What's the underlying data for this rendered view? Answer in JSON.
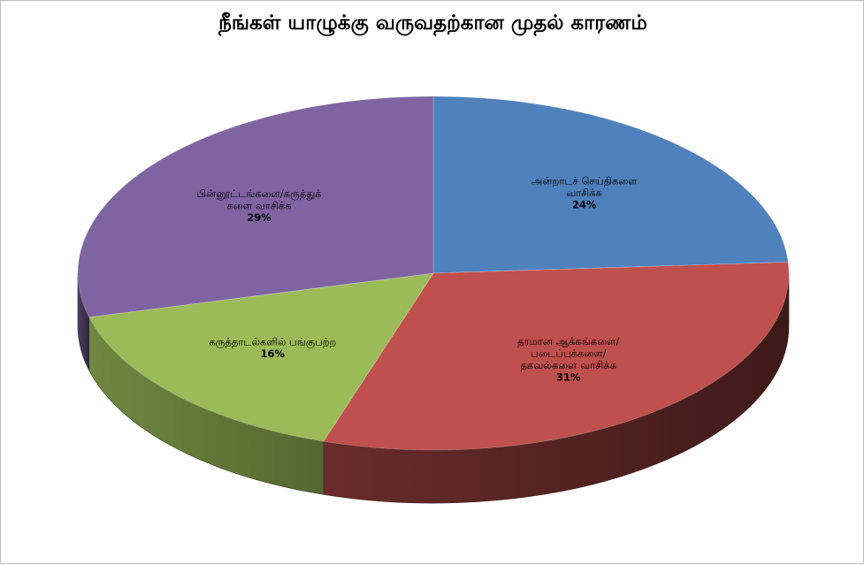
{
  "chart_data": {
    "type": "pie",
    "style": "3d",
    "title": "நீங்கள் யாழுக்கு வருவதற்கான முதல் காரணம்",
    "slices": [
      {
        "label_lines": [
          "அன்றாடச் செய்திகளை",
          "வாசிக்க"
        ],
        "percent_label": "24%",
        "value": 24,
        "color": "#4f81bd"
      },
      {
        "label_lines": [
          "தரமான ஆக்கங்களை/",
          "படைப்புக்களை/",
          "தகவல்களை வாசிக்க"
        ],
        "percent_label": "31%",
        "value": 31,
        "color": "#c0504d"
      },
      {
        "label_lines": [
          "கருத்தாடல்களில் பங்குபற்ற"
        ],
        "percent_label": "16%",
        "value": 16,
        "color": "#9bbb59"
      },
      {
        "label_lines": [
          "பின்னூட்டங்களை/கருத்துக்",
          "களை வாசிக்க"
        ],
        "percent_label": "29%",
        "value": 29,
        "color": "#8064a2"
      }
    ],
    "legend": "none",
    "start": "top",
    "direction": "clockwise"
  }
}
